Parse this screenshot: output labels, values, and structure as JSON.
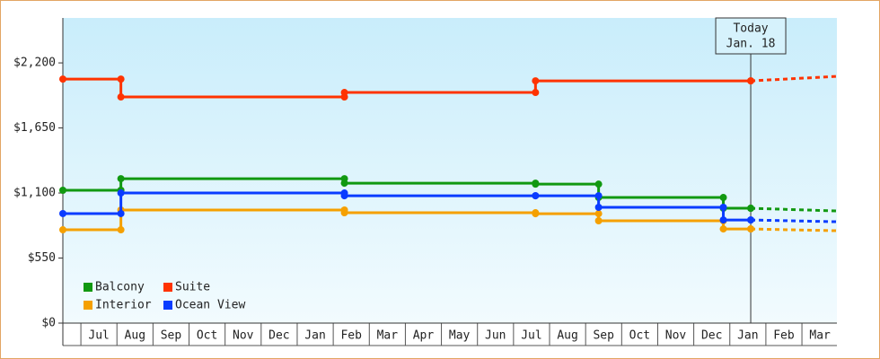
{
  "chart_data": {
    "type": "step",
    "xlim": [
      0,
      21.47
    ],
    "xticks": [
      {
        "value": 1,
        "label": "Jul"
      },
      {
        "value": 2,
        "label": "Aug"
      },
      {
        "value": 3,
        "label": "Sep"
      },
      {
        "value": 4,
        "label": "Oct"
      },
      {
        "value": 5,
        "label": "Nov"
      },
      {
        "value": 6,
        "label": "Dec"
      },
      {
        "value": 7,
        "label": "Jan"
      },
      {
        "value": 8,
        "label": "Feb"
      },
      {
        "value": 9,
        "label": "Mar"
      },
      {
        "value": 10,
        "label": "Apr"
      },
      {
        "value": 11,
        "label": "May"
      },
      {
        "value": 12,
        "label": "Jun"
      },
      {
        "value": 13,
        "label": "Jul"
      },
      {
        "value": 14,
        "label": "Aug"
      },
      {
        "value": 15,
        "label": "Sep"
      },
      {
        "value": 16,
        "label": "Oct"
      },
      {
        "value": 17,
        "label": "Nov"
      },
      {
        "value": 18,
        "label": "Dec"
      },
      {
        "value": 19,
        "label": "Jan"
      },
      {
        "value": 20,
        "label": "Feb"
      },
      {
        "value": 21,
        "label": "Mar"
      }
    ],
    "ylim": [
      0,
      2580
    ],
    "yticks": [
      {
        "value": 0,
        "label": "$0"
      },
      {
        "value": 550,
        "label": "$550"
      },
      {
        "value": 1100,
        "label": "$1,100"
      },
      {
        "value": 1650,
        "label": "$1,650"
      },
      {
        "value": 2200,
        "label": "$2,200"
      }
    ],
    "today": {
      "x": 19.08,
      "label": "Today",
      "date": "Jan. 18"
    },
    "forecast_x": [
      19.08,
      21.47
    ],
    "series": [
      {
        "name": "Balcony",
        "color": "#119911",
        "x": [
          0,
          1.61,
          7.81,
          13.11,
          14.86,
          18.32,
          19.08
        ],
        "values": [
          1123,
          1221,
          1183,
          1175,
          1062,
          971,
          971
        ],
        "forecast": [
          971,
          948
        ]
      },
      {
        "name": "Suite",
        "color": "#ff3300",
        "x": [
          0,
          1.61,
          7.81,
          13.11,
          19.08
        ],
        "values": [
          2063,
          1912,
          1950,
          2048,
          2048
        ],
        "forecast": [
          2048,
          2086
        ]
      },
      {
        "name": "Interior",
        "color": "#f5a000",
        "x": [
          0,
          1.61,
          7.81,
          13.11,
          14.86,
          18.32,
          19.08
        ],
        "values": [
          789,
          956,
          933,
          925,
          865,
          796,
          796
        ],
        "forecast": [
          796,
          781
        ]
      },
      {
        "name": "Ocean View",
        "color": "#0a3cff",
        "x": [
          0,
          1.61,
          7.81,
          13.11,
          14.86,
          18.32,
          19.08
        ],
        "values": [
          926,
          1100,
          1077,
          1077,
          979,
          872,
          872
        ],
        "forecast": [
          872,
          857
        ]
      }
    ]
  }
}
